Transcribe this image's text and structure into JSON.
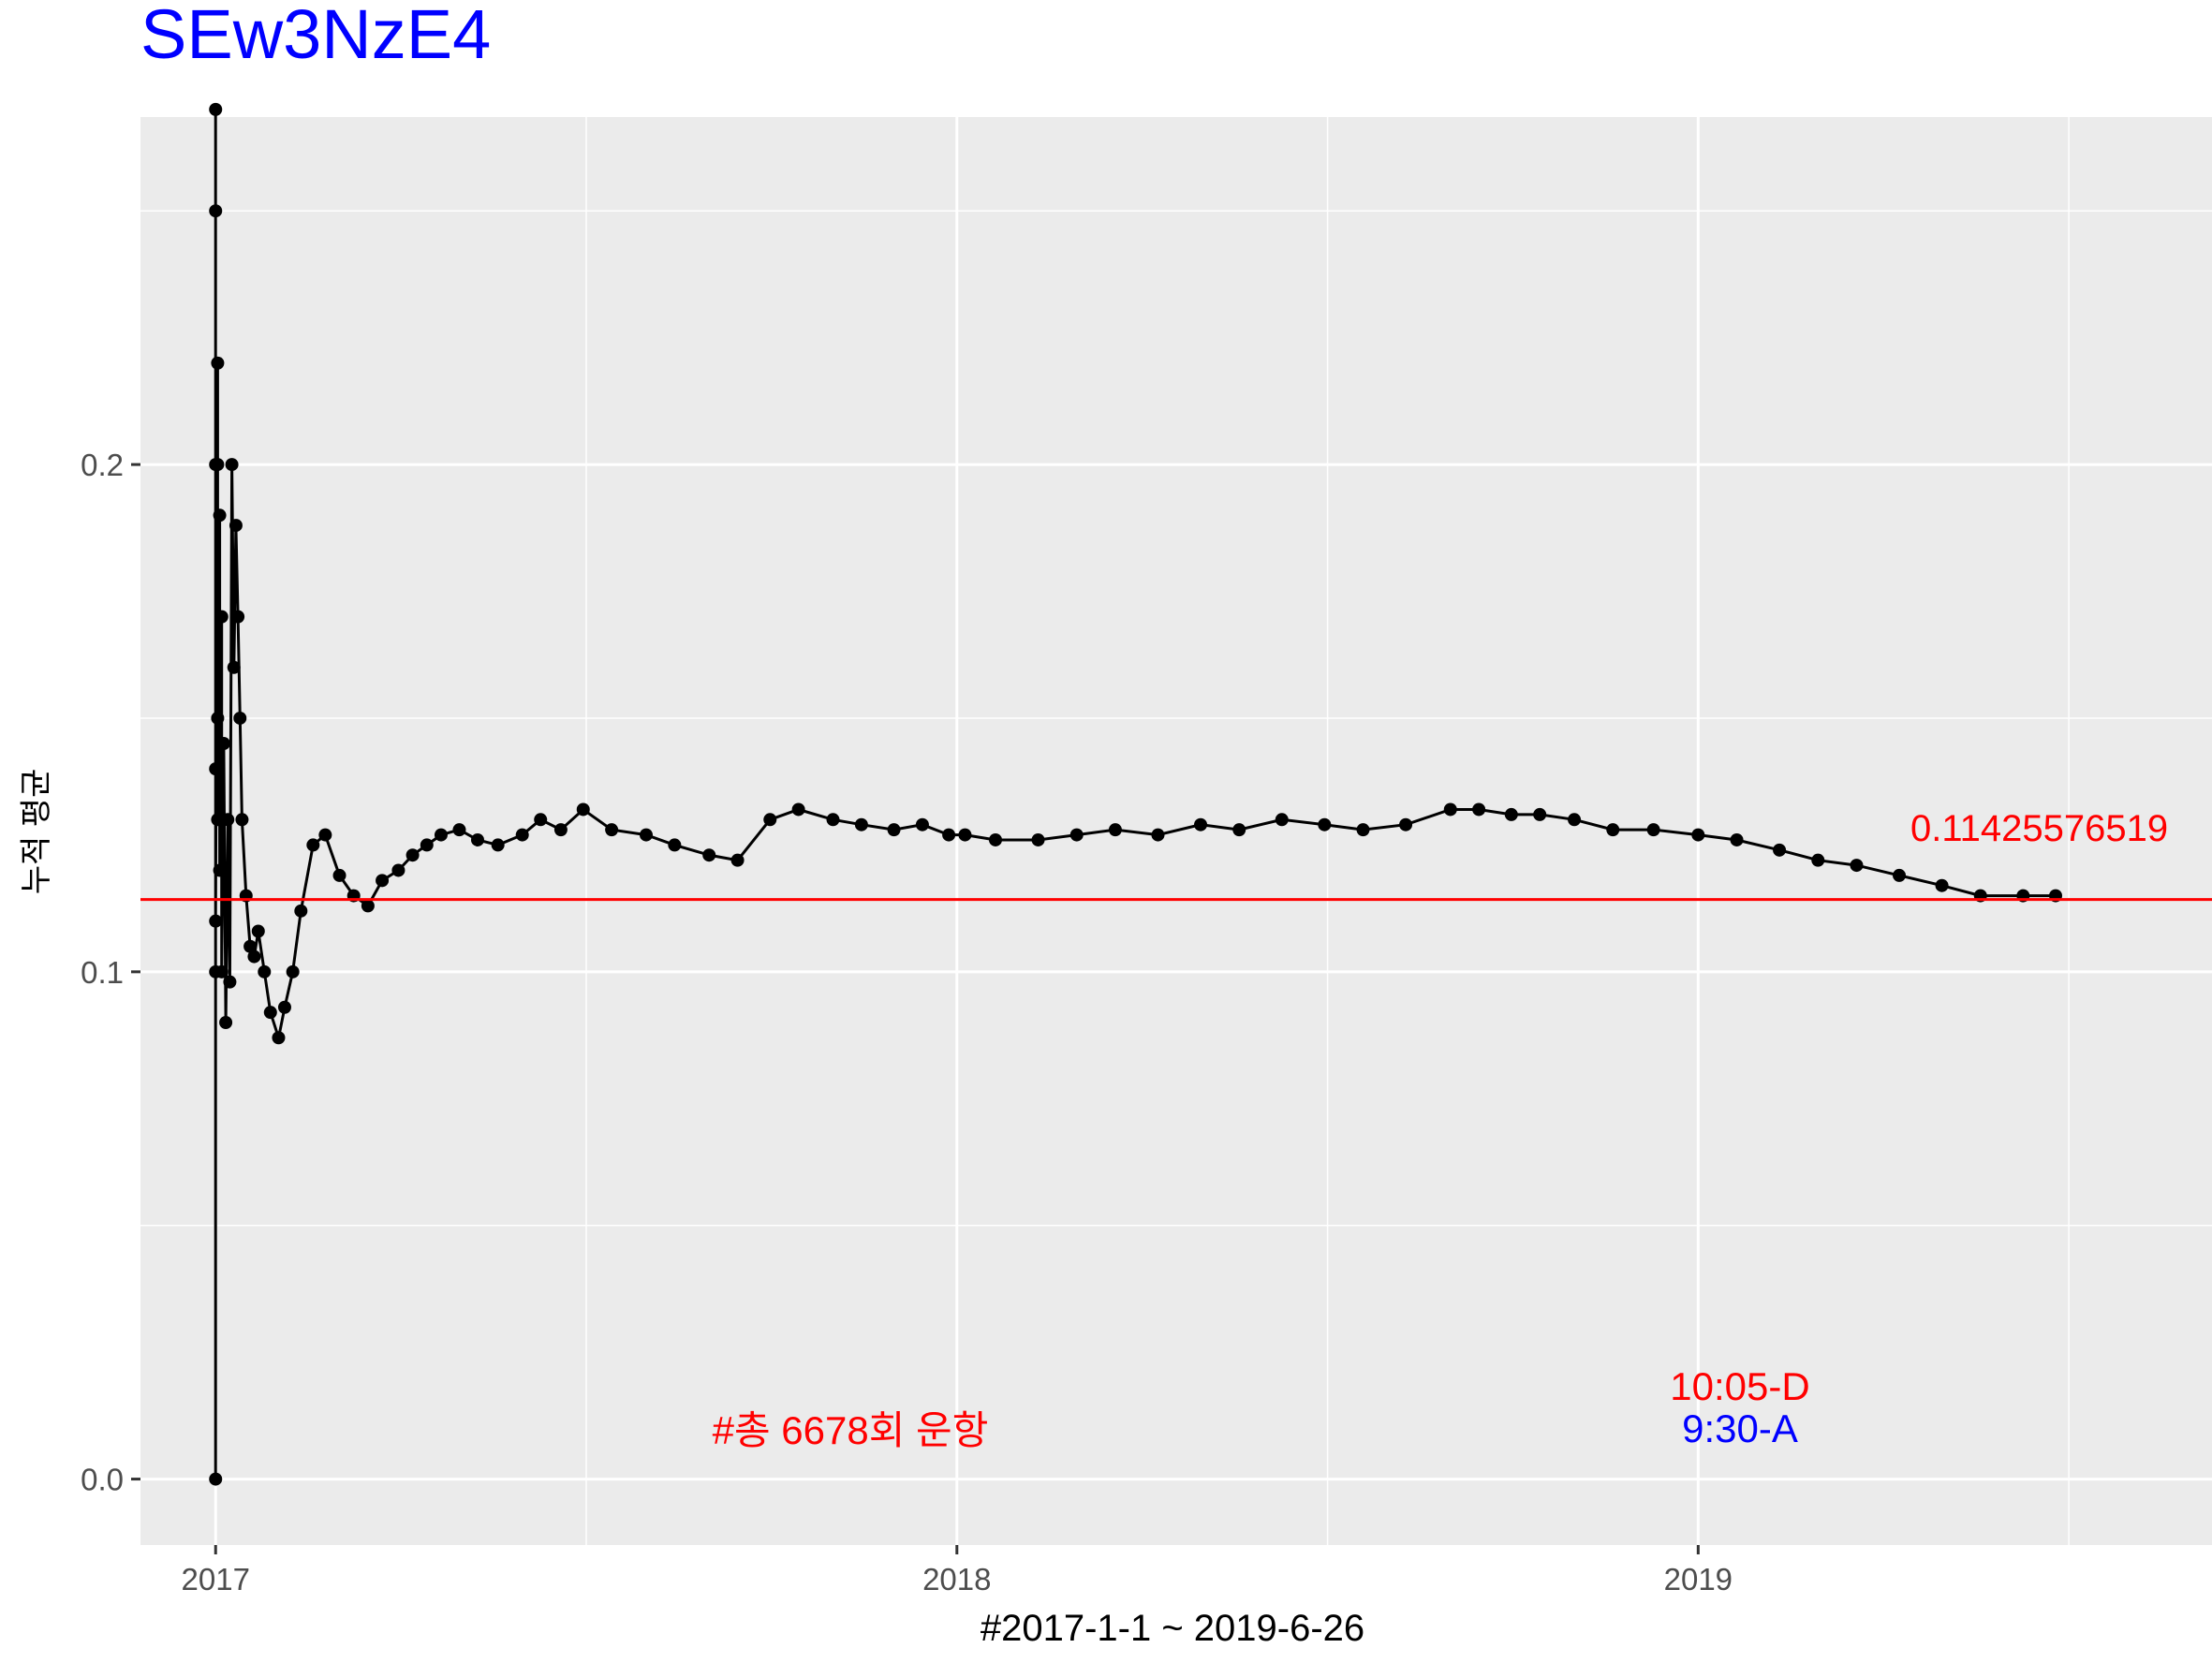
{
  "chart_data": {
    "type": "line",
    "title": "SEw3NzE4",
    "xlabel": "#2017-1-1 ~ 2019-6-26",
    "ylabel": "누적 평균",
    "x_ticks": [
      "2017",
      "2018",
      "2019"
    ],
    "y_ticks": [
      "0.0",
      "0.1",
      "0.2"
    ],
    "xlim": [
      "2016-11-25",
      "2019-09-11"
    ],
    "ylim": [
      -0.013,
      0.2685
    ],
    "grid": true,
    "legend": "none",
    "reference_line": {
      "value": 0.1142557651,
      "label": "0.11425576519",
      "color": "#ff0000"
    },
    "annotations": {
      "total_runs": "#총 6678회 운항",
      "route_d": "10:05-D",
      "route_a": "9:30-A"
    },
    "colors": {
      "title": "#0000ff",
      "series": "#000000",
      "panel": "#ebebeb",
      "grid": "#ffffff",
      "reference": "#ff0000",
      "route_d": "#ff0000",
      "route_a": "#0000ff"
    },
    "series": [
      {
        "x": [
          "2017-01-01",
          "2017-01-01",
          "2017-01-01",
          "2017-01-01",
          "2017-01-01",
          "2017-01-01",
          "2017-01-01",
          "2017-01-02",
          "2017-01-02",
          "2017-01-02",
          "2017-01-02",
          "2017-01-03",
          "2017-01-03",
          "2017-01-04",
          "2017-01-04",
          "2017-01-05",
          "2017-01-06",
          "2017-01-07",
          "2017-01-08",
          "2017-01-09",
          "2017-01-10",
          "2017-01-11",
          "2017-01-12",
          "2017-01-13",
          "2017-01-14",
          "2017-01-16",
          "2017-01-18",
          "2017-01-20",
          "2017-01-22",
          "2017-01-25",
          "2017-01-28",
          "2017-02-01",
          "2017-02-04",
          "2017-02-08",
          "2017-02-12",
          "2017-02-18",
          "2017-02-24",
          "2017-03-03",
          "2017-03-10",
          "2017-03-17",
          "2017-03-24",
          "2017-04-01",
          "2017-04-08",
          "2017-04-15",
          "2017-04-22",
          "2017-05-01",
          "2017-05-10",
          "2017-05-20",
          "2017-06-01",
          "2017-06-10",
          "2017-06-20",
          "2017-07-01",
          "2017-07-15",
          "2017-08-01",
          "2017-08-15",
          "2017-09-01",
          "2017-09-15",
          "2017-10-01",
          "2017-10-15",
          "2017-11-01",
          "2017-11-15",
          "2017-12-01",
          "2017-12-15",
          "2017-12-28",
          "2018-01-05",
          "2018-01-20",
          "2018-02-10",
          "2018-03-01",
          "2018-03-20",
          "2018-04-10",
          "2018-05-01",
          "2018-05-20",
          "2018-06-10",
          "2018-07-01",
          "2018-07-20",
          "2018-08-10",
          "2018-09-01",
          "2018-09-15",
          "2018-10-01",
          "2018-10-15",
          "2018-11-01",
          "2018-11-20",
          "2018-12-10",
          "2019-01-01",
          "2019-01-20",
          "2019-02-10",
          "2019-03-01",
          "2019-03-20",
          "2019-04-10",
          "2019-05-01",
          "2019-05-20",
          "2019-06-10",
          "2019-06-26"
        ],
        "y": [
          0.0,
          0.27,
          0.1,
          0.2,
          0.14,
          0.25,
          0.11,
          0.22,
          0.13,
          0.2,
          0.15,
          0.19,
          0.12,
          0.17,
          0.1,
          0.145,
          0.09,
          0.13,
          0.098,
          0.2,
          0.16,
          0.188,
          0.17,
          0.15,
          0.13,
          0.115,
          0.105,
          0.103,
          0.108,
          0.1,
          0.092,
          0.087,
          0.093,
          0.1,
          0.112,
          0.125,
          0.127,
          0.119,
          0.115,
          0.113,
          0.118,
          0.12,
          0.123,
          0.125,
          0.127,
          0.128,
          0.126,
          0.125,
          0.127,
          0.13,
          0.128,
          0.132,
          0.128,
          0.127,
          0.125,
          0.123,
          0.122,
          0.13,
          0.132,
          0.13,
          0.129,
          0.128,
          0.129,
          0.127,
          0.127,
          0.126,
          0.126,
          0.127,
          0.128,
          0.127,
          0.129,
          0.128,
          0.13,
          0.129,
          0.128,
          0.129,
          0.132,
          0.132,
          0.131,
          0.131,
          0.13,
          0.128,
          0.128,
          0.127,
          0.126,
          0.124,
          0.122,
          0.121,
          0.119,
          0.117,
          0.115,
          0.115,
          0.115
        ]
      }
    ]
  }
}
